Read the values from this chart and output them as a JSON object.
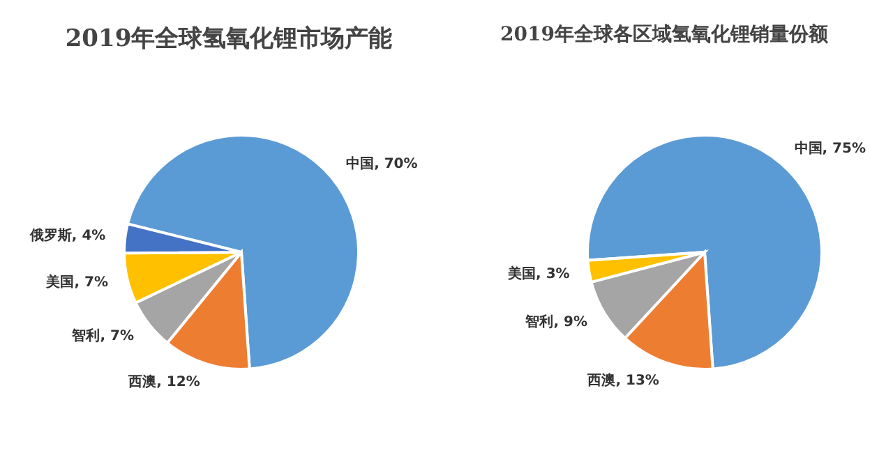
{
  "chart_data": [
    {
      "type": "pie",
      "title": "2019年全球氢氧化锂市场产能",
      "categories": [
        "中国",
        "西澳",
        "智利",
        "美国",
        "俄罗斯"
      ],
      "values": [
        70,
        12,
        7,
        7,
        4
      ],
      "colors": [
        "#5b9bd5",
        "#ed7d31",
        "#a5a5a5",
        "#ffc000",
        "#4472c4"
      ],
      "value_labels": [
        "70%",
        "12%",
        "7%",
        "7%",
        "4%"
      ],
      "legend": false
    },
    {
      "type": "pie",
      "title": "2019年全球各区域氢氧化锂销量份额",
      "categories": [
        "中国",
        "西澳",
        "智利",
        "美国"
      ],
      "values": [
        75,
        13,
        9,
        3
      ],
      "colors": [
        "#5b9bd5",
        "#ed7d31",
        "#a5a5a5",
        "#ffc000"
      ],
      "value_labels": [
        "75%",
        "13%",
        "9%",
        "3%"
      ],
      "legend": false
    }
  ]
}
